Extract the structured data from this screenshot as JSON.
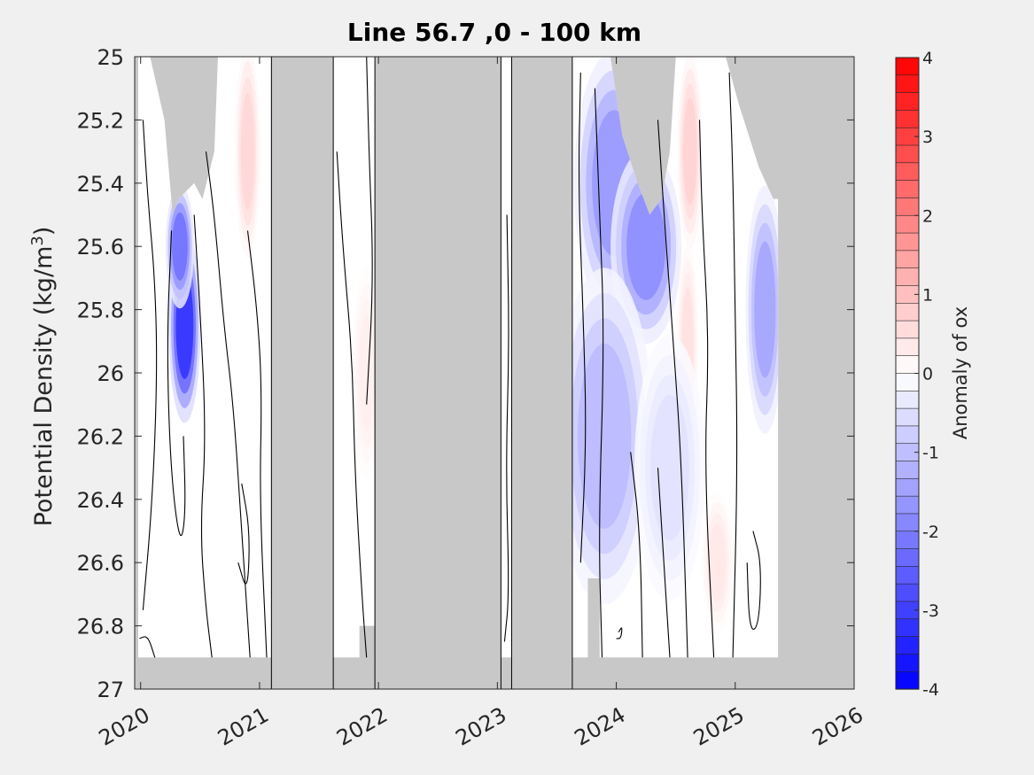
{
  "chart_data": {
    "type": "heatmap",
    "title": "Line 56.7 ,0 - 100 km",
    "ylabel": "Potential Density (kg/m",
    "ylabel_sup": "3",
    "ylabel_close": ")",
    "xlim": [
      2019.95,
      2026.0
    ],
    "ylim": [
      25.0,
      27.0
    ],
    "y_reversed": true,
    "x_ticks": [
      2020,
      2021,
      2022,
      2023,
      2024,
      2025,
      2026
    ],
    "x_tick_labels": [
      "2020",
      "2021",
      "2022",
      "2023",
      "2024",
      "2025",
      "2026"
    ],
    "y_ticks": [
      25.0,
      25.2,
      25.4,
      25.6,
      25.8,
      26.0,
      26.2,
      26.4,
      26.6,
      26.8,
      27.0
    ],
    "y_tick_labels": [
      "25",
      "25.2",
      "25.4",
      "25.6",
      "25.8",
      "26",
      "26.2",
      "26.4",
      "26.6",
      "26.8",
      "27"
    ],
    "colorbar": {
      "label": "Anomaly of ox",
      "range": [
        -4,
        4
      ],
      "levels": 36,
      "ticks": [
        4,
        3,
        2,
        1,
        0,
        -1,
        -2,
        -3,
        -4
      ],
      "tick_labels": [
        "4",
        "3",
        "2",
        "1",
        "0",
        "-1",
        "-2",
        "-3",
        "-4"
      ],
      "colormap": "blue-white-red"
    },
    "missing_color": "#c8c8c8",
    "data_gaps": [
      {
        "x": [
          2021.1,
          2021.62
        ]
      },
      {
        "x": [
          2021.97,
          2023.03
        ]
      },
      {
        "x": [
          2023.12,
          2023.63
        ]
      }
    ],
    "anomalies": [
      {
        "x": 2020.37,
        "y": 25.85,
        "value": -3.6
      },
      {
        "x": 2020.33,
        "y": 25.6,
        "value": -2.5
      },
      {
        "x": 2020.9,
        "y": 25.3,
        "value": 0.7
      },
      {
        "x": 2021.9,
        "y": 26.0,
        "value": 0.3
      },
      {
        "x": 2023.98,
        "y": 25.4,
        "value": -1.8
      },
      {
        "x": 2024.25,
        "y": 25.6,
        "value": -2.0
      },
      {
        "x": 2023.9,
        "y": 26.2,
        "value": -1.2
      },
      {
        "x": 2024.62,
        "y": 25.3,
        "value": 0.8
      },
      {
        "x": 2024.6,
        "y": 25.9,
        "value": 0.5
      },
      {
        "x": 2024.45,
        "y": 26.3,
        "value": -0.5
      },
      {
        "x": 2025.25,
        "y": 25.8,
        "value": -1.6
      },
      {
        "x": 2024.85,
        "y": 26.6,
        "value": 0.4
      }
    ]
  }
}
